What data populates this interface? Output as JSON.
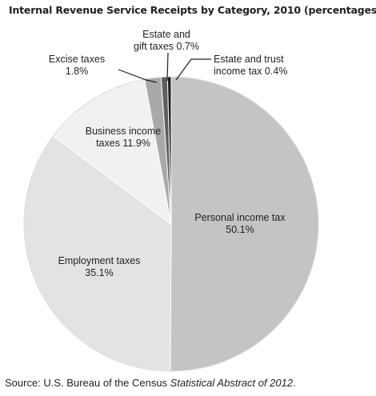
{
  "chart_data": {
    "type": "pie",
    "title": "Internal Revenue Service Receipts by Category, 2010 (percentages)",
    "slices": [
      {
        "label_lines": [
          "Personal income tax",
          "50.1%"
        ],
        "value": 50.1,
        "color": "#c4c4c4"
      },
      {
        "label_lines": [
          "Employment taxes",
          "35.1%"
        ],
        "value": 35.1,
        "color": "#e3e3e3"
      },
      {
        "label_lines": [
          "Business income",
          "taxes 11.9%"
        ],
        "value": 11.9,
        "color": "#f1f1f1"
      },
      {
        "label_lines": [
          "Excise taxes",
          "1.8%"
        ],
        "value": 1.8,
        "color": "#a9a9a9"
      },
      {
        "label_lines": [
          "Estate and",
          "gift taxes 0.7%"
        ],
        "value": 0.7,
        "color": "#5f5f5f"
      },
      {
        "label_lines": [
          "Estate and trust",
          "income tax 0.4%"
        ],
        "value": 0.4,
        "color": "#1e1e1e"
      }
    ]
  },
  "source": {
    "prefix": "Source: U.S. Bureau of the Census ",
    "italic": "Statistical Abstract of 2012",
    "suffix": "."
  }
}
